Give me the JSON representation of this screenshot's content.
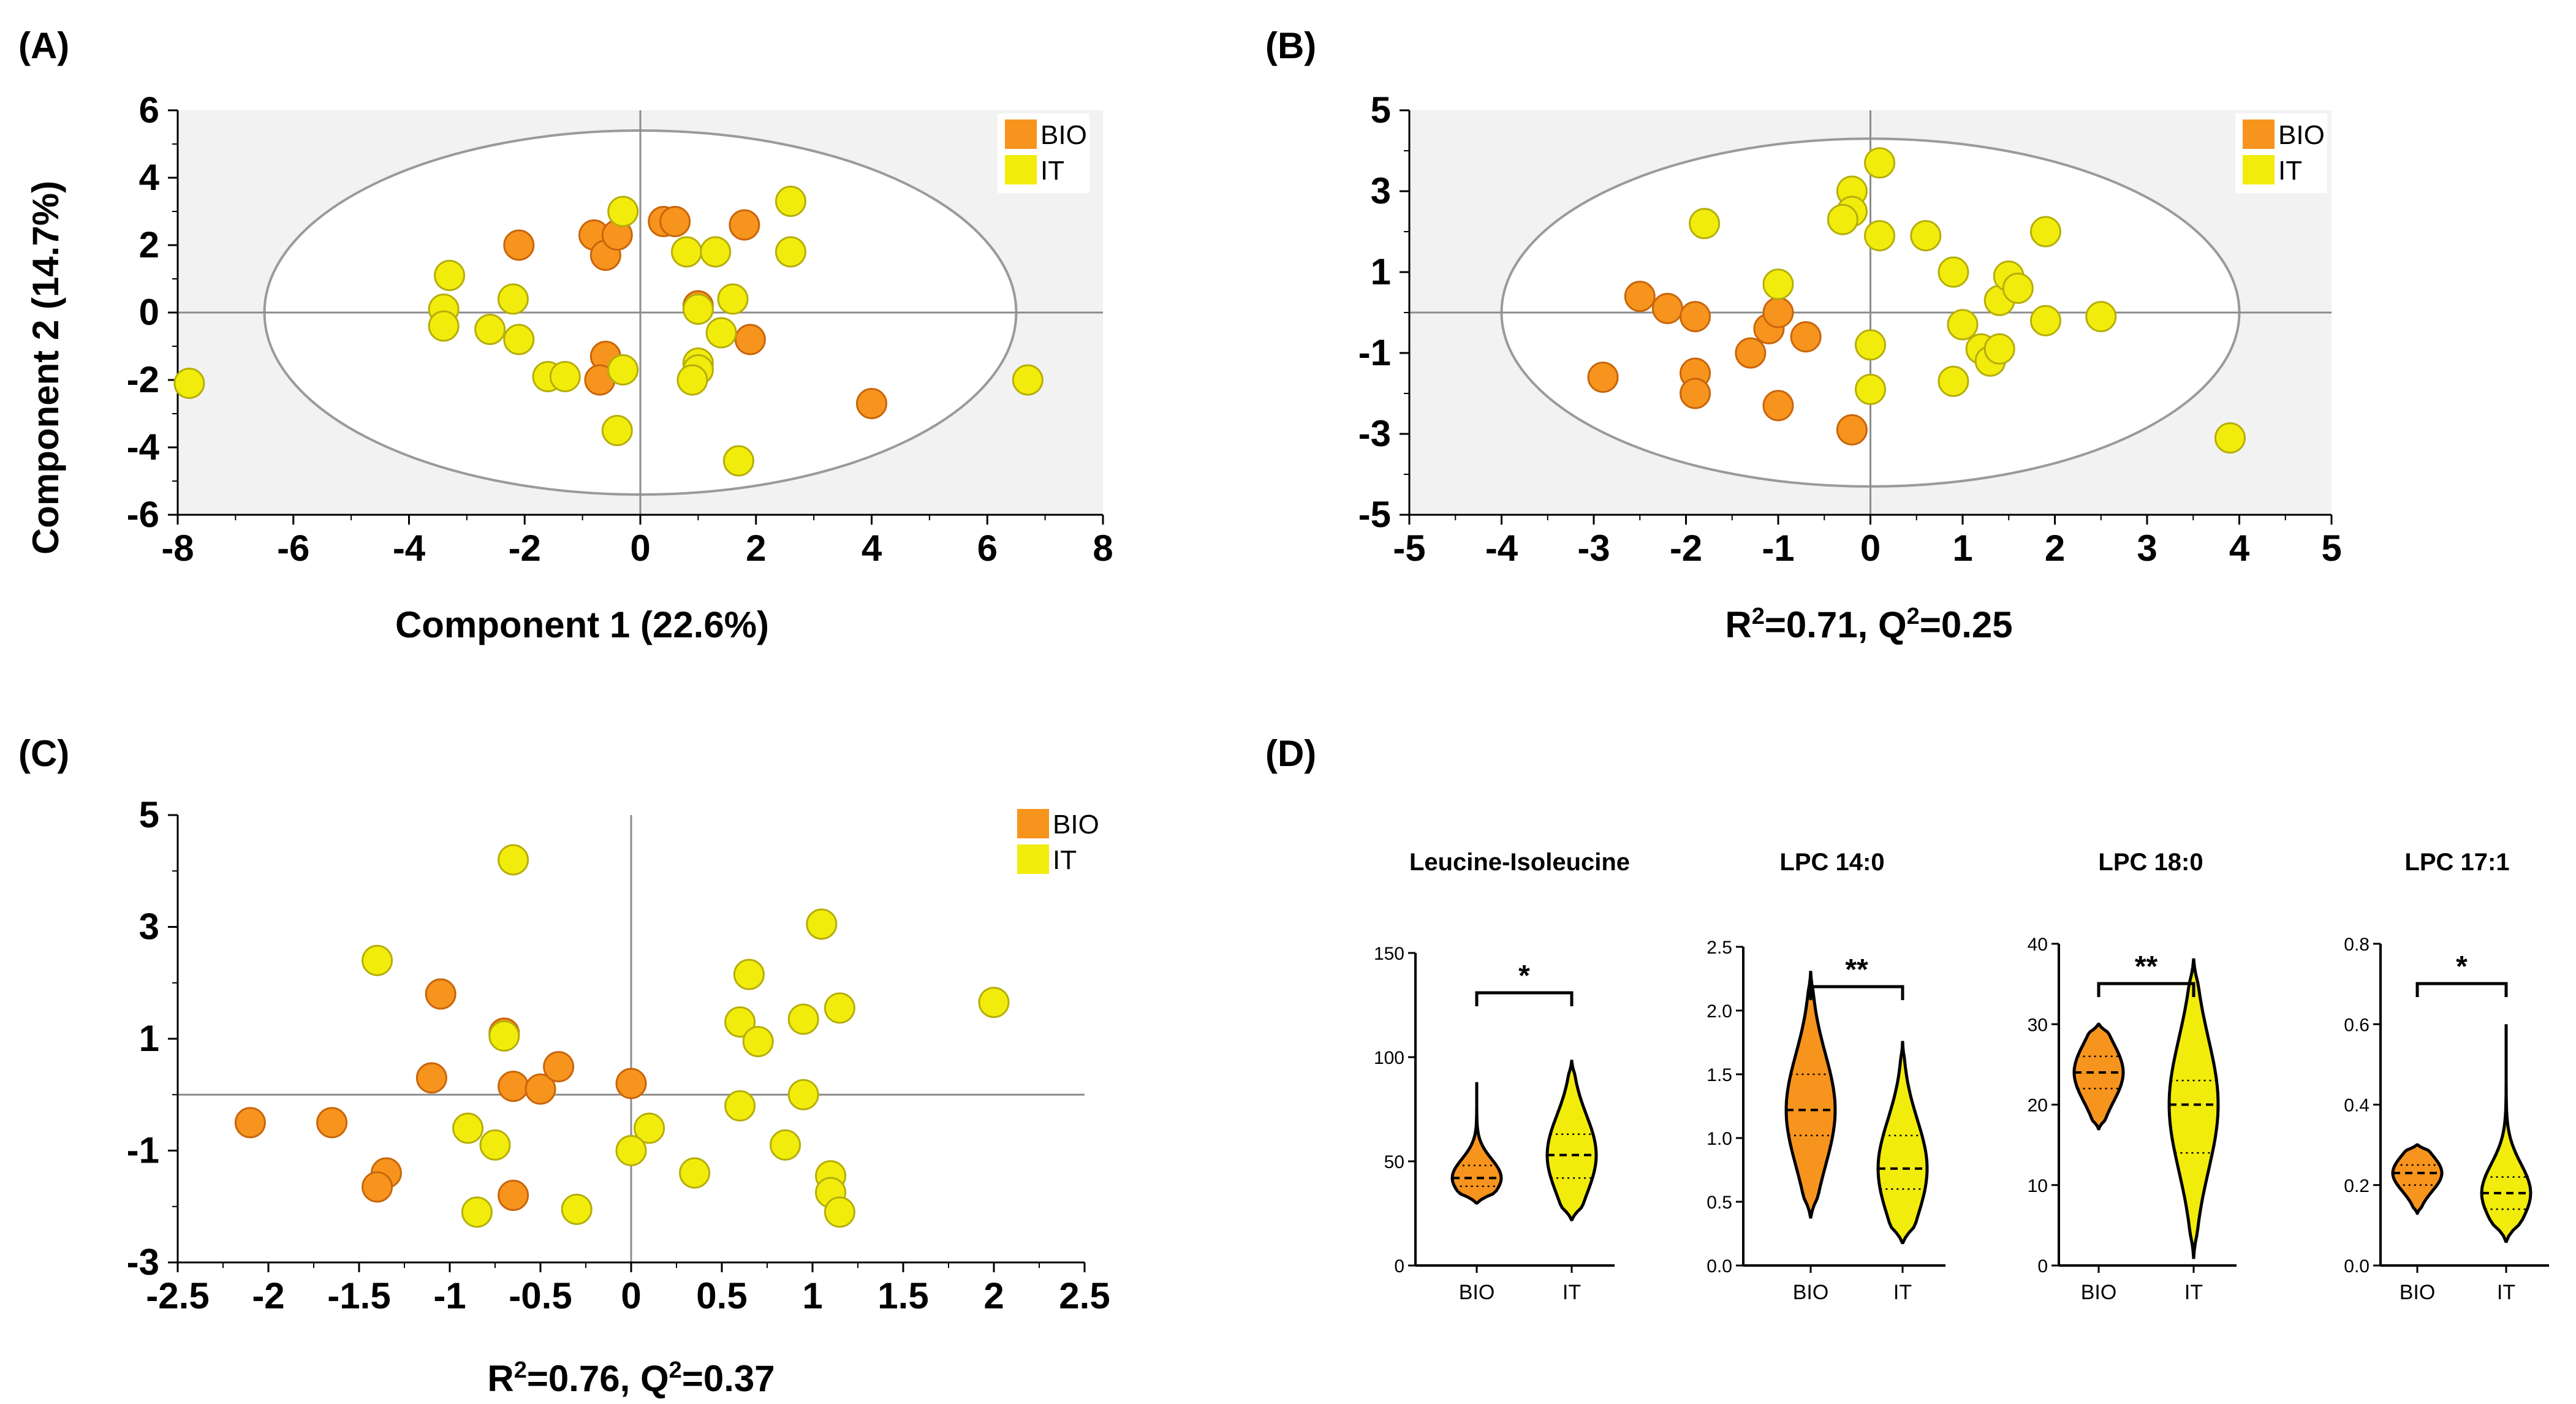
{
  "colors": {
    "BIO": "#f7941d",
    "BIO_edge": "#c8650c",
    "IT": "#f2ec0d",
    "IT_edge": "#b5ae0a",
    "plot_bg": "#f2f2f2",
    "ellipse": "#9a9a9a",
    "axis": "#8c8c8c"
  },
  "chart_data": [
    {
      "panel": "(A)",
      "type": "scatter",
      "xlabel": "Component 1 (22.6%)",
      "ylabel": "Component 2 (14.7%)",
      "xlim": [
        -8,
        8
      ],
      "ylim": [
        -6,
        6
      ],
      "xticks": [
        "-8",
        "-6",
        "-4",
        "-2",
        "0",
        "2",
        "4",
        "6",
        "8"
      ],
      "yticks": [
        "6",
        "4",
        "2",
        "0",
        "-2",
        "-4",
        "-6"
      ],
      "legend": [
        "BIO",
        "IT"
      ],
      "ellipse": {
        "cx": 0,
        "cy": 0,
        "rx": 6.5,
        "ry": 5.4
      },
      "series": [
        {
          "name": "BIO",
          "points": [
            [
              -2.1,
              2.0
            ],
            [
              -0.8,
              2.3
            ],
            [
              -0.6,
              1.7
            ],
            [
              -0.4,
              2.3
            ],
            [
              0.4,
              2.7
            ],
            [
              0.6,
              2.7
            ],
            [
              1.8,
              2.6
            ],
            [
              1.0,
              0.2
            ],
            [
              1.9,
              -0.8
            ],
            [
              -0.6,
              -1.3
            ],
            [
              -0.7,
              -2.0
            ],
            [
              4.0,
              -2.7
            ]
          ]
        },
        {
          "name": "IT",
          "points": [
            [
              -7.8,
              -2.1
            ],
            [
              -3.3,
              1.1
            ],
            [
              -3.4,
              0.1
            ],
            [
              -3.4,
              -0.4
            ],
            [
              -2.6,
              -0.5
            ],
            [
              -2.2,
              0.4
            ],
            [
              -2.1,
              -0.8
            ],
            [
              -1.6,
              -1.9
            ],
            [
              -1.3,
              -1.9
            ],
            [
              -0.4,
              -3.5
            ],
            [
              -0.3,
              -1.7
            ],
            [
              -0.3,
              3.0
            ],
            [
              0.8,
              1.8
            ],
            [
              1.3,
              1.8
            ],
            [
              1.0,
              0.1
            ],
            [
              1.6,
              0.4
            ],
            [
              1.4,
              -0.6
            ],
            [
              1.0,
              -1.5
            ],
            [
              1.0,
              -1.7
            ],
            [
              0.9,
              -2.0
            ],
            [
              1.7,
              -4.4
            ],
            [
              2.6,
              3.3
            ],
            [
              2.6,
              1.8
            ],
            [
              6.7,
              -2.0
            ]
          ]
        }
      ]
    },
    {
      "panel": "(B)",
      "type": "scatter",
      "xlabel": "R²=0.71, Q²=0.25",
      "xlabel_parts": {
        "r": "R",
        "r_eq": "=0.71, ",
        "q": "Q",
        "q_eq": "=0.25",
        "sup": "2"
      },
      "xlim": [
        -5,
        5
      ],
      "ylim": [
        -5,
        5
      ],
      "xticks": [
        "-5",
        "-4",
        "-3",
        "-2",
        "-1",
        "0",
        "1",
        "2",
        "3",
        "4",
        "5"
      ],
      "yticks": [
        "5",
        "3",
        "1",
        "-1",
        "-3",
        "-5"
      ],
      "legend": [
        "BIO",
        "IT"
      ],
      "ellipse": {
        "cx": 0,
        "cy": 0,
        "rx": 4.0,
        "ry": 4.3
      },
      "series": [
        {
          "name": "BIO",
          "points": [
            [
              -2.9,
              -1.6
            ],
            [
              -2.5,
              0.4
            ],
            [
              -2.2,
              0.1
            ],
            [
              -1.9,
              -0.1
            ],
            [
              -1.9,
              -1.5
            ],
            [
              -1.9,
              -2.0
            ],
            [
              -1.3,
              -1.0
            ],
            [
              -1.1,
              -0.4
            ],
            [
              -1.0,
              0.0
            ],
            [
              -0.7,
              -0.6
            ],
            [
              -1.0,
              -2.3
            ],
            [
              -0.2,
              -2.9
            ]
          ]
        },
        {
          "name": "IT",
          "points": [
            [
              -1.8,
              2.2
            ],
            [
              -1.0,
              0.7
            ],
            [
              -0.2,
              3.0
            ],
            [
              -0.2,
              2.5
            ],
            [
              -0.3,
              2.3
            ],
            [
              0.1,
              3.7
            ],
            [
              0.1,
              1.9
            ],
            [
              0.6,
              1.9
            ],
            [
              0.9,
              1.0
            ],
            [
              0.0,
              -0.8
            ],
            [
              0.0,
              -1.9
            ],
            [
              0.9,
              -1.7
            ],
            [
              1.0,
              -0.3
            ],
            [
              1.2,
              -0.9
            ],
            [
              1.3,
              -1.2
            ],
            [
              1.4,
              -0.9
            ],
            [
              1.4,
              0.3
            ],
            [
              1.5,
              0.9
            ],
            [
              1.6,
              0.6
            ],
            [
              1.9,
              2.0
            ],
            [
              1.9,
              -0.2
            ],
            [
              2.5,
              -0.1
            ],
            [
              3.9,
              -3.1
            ]
          ]
        }
      ]
    },
    {
      "panel": "(C)",
      "type": "scatter",
      "xlabel": "R²=0.76, Q²=0.37",
      "xlabel_parts": {
        "r": "R",
        "r_eq": "=0.76, ",
        "q": "Q",
        "q_eq": "=0.37",
        "sup": "2"
      },
      "xlim": [
        -2.5,
        2.5
      ],
      "ylim": [
        -3,
        5
      ],
      "xticks": [
        "-2.5",
        "-2",
        "-1.5",
        "-1",
        "-0.5",
        "0",
        "0.5",
        "1",
        "1.5",
        "2",
        "2.5"
      ],
      "yticks": [
        "5",
        "3",
        "1",
        "-1",
        "-3"
      ],
      "legend": [
        "BIO",
        "IT"
      ],
      "series": [
        {
          "name": "BIO",
          "points": [
            [
              -2.1,
              -0.5
            ],
            [
              -1.65,
              -0.5
            ],
            [
              -1.35,
              -1.4
            ],
            [
              -1.4,
              -1.65
            ],
            [
              -1.05,
              1.8
            ],
            [
              -1.1,
              0.3
            ],
            [
              -0.7,
              1.1
            ],
            [
              -0.65,
              0.15
            ],
            [
              -0.65,
              -1.8
            ],
            [
              -0.5,
              0.1
            ],
            [
              -0.4,
              0.5
            ],
            [
              0.0,
              0.2
            ]
          ]
        },
        {
          "name": "IT",
          "points": [
            [
              -1.4,
              2.4
            ],
            [
              -0.65,
              4.2
            ],
            [
              -0.7,
              1.05
            ],
            [
              -0.9,
              -0.6
            ],
            [
              -0.75,
              -0.9
            ],
            [
              -0.85,
              -2.1
            ],
            [
              -0.3,
              -2.05
            ],
            [
              0.1,
              -0.6
            ],
            [
              0.0,
              -1.0
            ],
            [
              0.35,
              -1.4
            ],
            [
              0.6,
              -0.2
            ],
            [
              0.6,
              1.3
            ],
            [
              0.65,
              2.15
            ],
            [
              0.7,
              0.95
            ],
            [
              0.85,
              -0.9
            ],
            [
              0.95,
              0.0
            ],
            [
              0.95,
              1.35
            ],
            [
              1.05,
              3.05
            ],
            [
              1.1,
              -1.45
            ],
            [
              1.1,
              -1.75
            ],
            [
              1.15,
              -2.1
            ],
            [
              1.15,
              1.55
            ],
            [
              2.0,
              1.65
            ]
          ]
        }
      ]
    },
    {
      "panel": "(D)",
      "type": "violin",
      "categories": [
        "BIO",
        "IT"
      ],
      "plots": [
        {
          "title": "Leucine-Isoleucine",
          "ylim": [
            0,
            150
          ],
          "yticks": [
            "0",
            "50",
            "100",
            "150"
          ],
          "significance": "*",
          "BIO": {
            "min": 30,
            "max": 88,
            "median": 42,
            "q1": 38,
            "q3": 48
          },
          "IT": {
            "min": 22,
            "max": 98,
            "median": 53,
            "q1": 42,
            "q3": 63
          }
        },
        {
          "title": "LPC 14:0",
          "ylim": [
            0,
            2.5
          ],
          "yticks": [
            "0.0",
            "0.5",
            "1.0",
            "1.5",
            "2.0",
            "2.5"
          ],
          "significance": "**",
          "BIO": {
            "min": 0.38,
            "max": 2.3,
            "median": 1.22,
            "q1": 1.02,
            "q3": 1.5
          },
          "IT": {
            "min": 0.18,
            "max": 1.75,
            "median": 0.76,
            "q1": 0.6,
            "q3": 1.02
          }
        },
        {
          "title": "LPC 18:0",
          "ylim": [
            0,
            40
          ],
          "yticks": [
            "0",
            "10",
            "20",
            "30",
            "40"
          ],
          "significance": "**",
          "BIO": {
            "min": 17,
            "max": 30,
            "median": 24,
            "q1": 22,
            "q3": 26
          },
          "IT": {
            "min": 1,
            "max": 38,
            "median": 20,
            "q1": 14,
            "q3": 23
          }
        },
        {
          "title": "LPC 17:1",
          "ylim": [
            0,
            0.8
          ],
          "yticks": [
            "0.0",
            "0.2",
            "0.4",
            "0.6",
            "0.8"
          ],
          "significance": "*",
          "BIO": {
            "min": 0.13,
            "max": 0.3,
            "median": 0.23,
            "q1": 0.2,
            "q3": 0.25
          },
          "IT": {
            "min": 0.06,
            "max": 0.6,
            "median": 0.18,
            "q1": 0.14,
            "q3": 0.22
          }
        }
      ]
    }
  ]
}
